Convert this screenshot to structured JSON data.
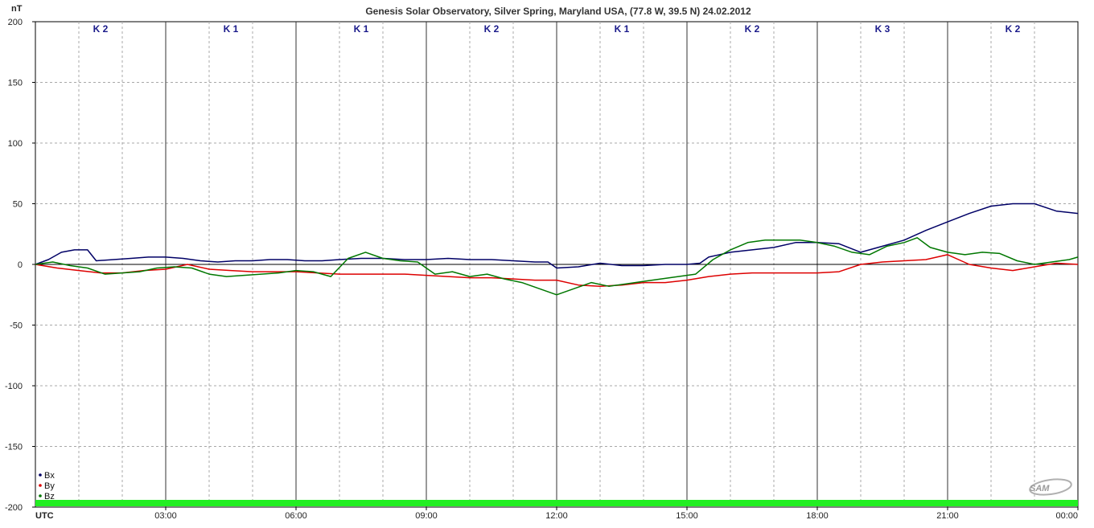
{
  "chart_data": {
    "type": "line",
    "title": "Genesis Solar Observatory, Silver Spring, Maryland USA, (77.8 W, 39.5 N)  24.02.2012",
    "ylabel": "nT",
    "xlabel": "UTC",
    "ylim": [
      -200,
      200
    ],
    "yticks": [
      200,
      150,
      100,
      50,
      0,
      -50,
      -100,
      -150,
      -200
    ],
    "xlim_hours": [
      0,
      24
    ],
    "xticks": [
      {
        "h": 3,
        "label": "03:00"
      },
      {
        "h": 6,
        "label": "06:00"
      },
      {
        "h": 9,
        "label": "09:00"
      },
      {
        "h": 12,
        "label": "12:00"
      },
      {
        "h": 15,
        "label": "15:00"
      },
      {
        "h": 18,
        "label": "18:00"
      },
      {
        "h": 21,
        "label": "21:00"
      },
      {
        "h": 24,
        "label": "00:00"
      }
    ],
    "k_index": [
      "K 2",
      "K 1",
      "K 1",
      "K 2",
      "K 1",
      "K 2",
      "K 3",
      "K 2"
    ],
    "grid": true,
    "legend_position": "bottom-left",
    "status_bar_color": "#22ee22",
    "logo_text": "SAM",
    "series": [
      {
        "name": "Bx",
        "color": "#000066",
        "points": [
          [
            0,
            0
          ],
          [
            0.3,
            4
          ],
          [
            0.6,
            10
          ],
          [
            0.9,
            12
          ],
          [
            1.2,
            12
          ],
          [
            1.4,
            3
          ],
          [
            1.8,
            4
          ],
          [
            2.2,
            5
          ],
          [
            2.6,
            6
          ],
          [
            3.0,
            6
          ],
          [
            3.4,
            5
          ],
          [
            3.8,
            3
          ],
          [
            4.2,
            2
          ],
          [
            4.6,
            3
          ],
          [
            5.0,
            3
          ],
          [
            5.4,
            4
          ],
          [
            5.8,
            4
          ],
          [
            6.2,
            3
          ],
          [
            6.6,
            3
          ],
          [
            7.0,
            4
          ],
          [
            7.5,
            5
          ],
          [
            8.0,
            5
          ],
          [
            8.5,
            4
          ],
          [
            9.0,
            4
          ],
          [
            9.5,
            5
          ],
          [
            10.0,
            4
          ],
          [
            10.5,
            4
          ],
          [
            11.0,
            3
          ],
          [
            11.5,
            2
          ],
          [
            11.8,
            2
          ],
          [
            12.0,
            -3
          ],
          [
            12.5,
            -2
          ],
          [
            13.0,
            1
          ],
          [
            13.5,
            -1
          ],
          [
            14.0,
            -1
          ],
          [
            14.5,
            0
          ],
          [
            15.0,
            0
          ],
          [
            15.3,
            1
          ],
          [
            15.5,
            6
          ],
          [
            16.0,
            10
          ],
          [
            16.5,
            12
          ],
          [
            17.0,
            14
          ],
          [
            17.5,
            18
          ],
          [
            18.0,
            18
          ],
          [
            18.5,
            17
          ],
          [
            19.0,
            10
          ],
          [
            19.5,
            15
          ],
          [
            20.0,
            20
          ],
          [
            20.5,
            28
          ],
          [
            21.0,
            35
          ],
          [
            21.5,
            42
          ],
          [
            22.0,
            48
          ],
          [
            22.5,
            50
          ],
          [
            23.0,
            50
          ],
          [
            23.5,
            44
          ],
          [
            24.0,
            42
          ]
        ]
      },
      {
        "name": "By",
        "color": "#dd0000",
        "points": [
          [
            0,
            0
          ],
          [
            0.5,
            -3
          ],
          [
            1.0,
            -5
          ],
          [
            1.5,
            -7
          ],
          [
            2.0,
            -7
          ],
          [
            2.5,
            -5
          ],
          [
            3.0,
            -4
          ],
          [
            3.5,
            0
          ],
          [
            4.0,
            -4
          ],
          [
            4.5,
            -5
          ],
          [
            5.0,
            -6
          ],
          [
            5.5,
            -6
          ],
          [
            6.0,
            -6
          ],
          [
            6.5,
            -7
          ],
          [
            7.0,
            -8
          ],
          [
            7.5,
            -8
          ],
          [
            8.0,
            -8
          ],
          [
            8.5,
            -8
          ],
          [
            9.0,
            -9
          ],
          [
            9.5,
            -10
          ],
          [
            10.0,
            -11
          ],
          [
            10.5,
            -11
          ],
          [
            11.0,
            -12
          ],
          [
            11.5,
            -13
          ],
          [
            12.0,
            -13
          ],
          [
            12.5,
            -17
          ],
          [
            13.0,
            -18
          ],
          [
            13.5,
            -17
          ],
          [
            14.0,
            -15
          ],
          [
            14.5,
            -15
          ],
          [
            15.0,
            -13
          ],
          [
            15.5,
            -10
          ],
          [
            16.0,
            -8
          ],
          [
            16.5,
            -7
          ],
          [
            17.0,
            -7
          ],
          [
            17.5,
            -7
          ],
          [
            18.0,
            -7
          ],
          [
            18.5,
            -6
          ],
          [
            19.0,
            0
          ],
          [
            19.5,
            2
          ],
          [
            20.0,
            3
          ],
          [
            20.5,
            4
          ],
          [
            21.0,
            8
          ],
          [
            21.5,
            0
          ],
          [
            22.0,
            -3
          ],
          [
            22.5,
            -5
          ],
          [
            23.0,
            -2
          ],
          [
            23.5,
            1
          ],
          [
            24.0,
            0
          ]
        ]
      },
      {
        "name": "Bz",
        "color": "#007700",
        "points": [
          [
            0,
            0
          ],
          [
            0.4,
            2
          ],
          [
            0.8,
            -1
          ],
          [
            1.2,
            -3
          ],
          [
            1.6,
            -8
          ],
          [
            2.0,
            -7
          ],
          [
            2.4,
            -6
          ],
          [
            2.8,
            -3
          ],
          [
            3.2,
            -2
          ],
          [
            3.6,
            -3
          ],
          [
            4.0,
            -8
          ],
          [
            4.4,
            -10
          ],
          [
            4.8,
            -9
          ],
          [
            5.2,
            -8
          ],
          [
            5.6,
            -7
          ],
          [
            6.0,
            -5
          ],
          [
            6.4,
            -6
          ],
          [
            6.8,
            -10
          ],
          [
            7.2,
            5
          ],
          [
            7.6,
            10
          ],
          [
            8.0,
            5
          ],
          [
            8.4,
            3
          ],
          [
            8.8,
            2
          ],
          [
            9.2,
            -8
          ],
          [
            9.6,
            -6
          ],
          [
            10.0,
            -10
          ],
          [
            10.4,
            -8
          ],
          [
            10.8,
            -12
          ],
          [
            11.2,
            -15
          ],
          [
            11.6,
            -20
          ],
          [
            12.0,
            -25
          ],
          [
            12.4,
            -20
          ],
          [
            12.8,
            -15
          ],
          [
            13.2,
            -18
          ],
          [
            13.6,
            -16
          ],
          [
            14.0,
            -14
          ],
          [
            14.4,
            -12
          ],
          [
            14.8,
            -10
          ],
          [
            15.2,
            -8
          ],
          [
            15.6,
            4
          ],
          [
            16.0,
            12
          ],
          [
            16.4,
            18
          ],
          [
            16.8,
            20
          ],
          [
            17.2,
            20
          ],
          [
            17.6,
            20
          ],
          [
            18.0,
            18
          ],
          [
            18.4,
            15
          ],
          [
            18.8,
            10
          ],
          [
            19.2,
            8
          ],
          [
            19.6,
            15
          ],
          [
            20.0,
            18
          ],
          [
            20.3,
            22
          ],
          [
            20.6,
            14
          ],
          [
            21.0,
            10
          ],
          [
            21.4,
            8
          ],
          [
            21.8,
            10
          ],
          [
            22.2,
            9
          ],
          [
            22.6,
            3
          ],
          [
            23.0,
            0
          ],
          [
            23.4,
            2
          ],
          [
            23.8,
            4
          ],
          [
            24.0,
            6
          ]
        ]
      }
    ]
  }
}
